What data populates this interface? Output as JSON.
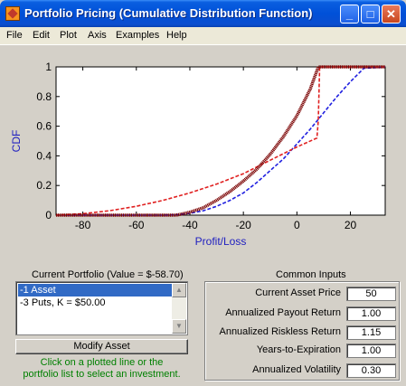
{
  "window": {
    "title": "Portfolio Pricing (Cumulative Distribution Function)",
    "minimize_glyph": "_",
    "maximize_glyph": "□",
    "close_glyph": "✕"
  },
  "menu": [
    "File",
    "Edit",
    "Plot",
    "Axis",
    "Examples",
    "Help"
  ],
  "chart_data": {
    "type": "line",
    "title": "",
    "xlabel": "Profit/Loss",
    "ylabel": "CDF",
    "xlim": [
      -90,
      33
    ],
    "ylim": [
      0,
      1
    ],
    "x_ticks": [
      -80,
      -60,
      -40,
      -20,
      0,
      20
    ],
    "y_ticks": [
      0,
      0.2,
      0.4,
      0.6,
      0.8,
      1
    ],
    "x_tick_labels": [
      "-80",
      "-60",
      "-40",
      "-20",
      "0",
      "20"
    ],
    "y_tick_labels": [
      "0",
      "0.2",
      "0.4",
      "0.6",
      "0.8",
      "1"
    ],
    "grid": false,
    "series": [
      {
        "style": "dashed",
        "color": "#2020e0",
        "x": [
          -90,
          -50,
          -45,
          -40,
          -35,
          -30,
          -25,
          -20,
          -15,
          -10,
          -5,
          0,
          5,
          10,
          15,
          20,
          25,
          33
        ],
        "y": [
          0,
          0,
          0.003,
          0.012,
          0.03,
          0.06,
          0.1,
          0.15,
          0.22,
          0.3,
          0.38,
          0.48,
          0.58,
          0.69,
          0.8,
          0.9,
          0.99,
          1
        ]
      },
      {
        "style": "dashed",
        "color": "#e02020",
        "x": [
          -90,
          -80,
          -70,
          -60,
          -50,
          -40,
          -30,
          -20,
          -10,
          0,
          7.5,
          8,
          8.5,
          33
        ],
        "y": [
          0,
          0.01,
          0.03,
          0.06,
          0.1,
          0.15,
          0.21,
          0.28,
          0.37,
          0.46,
          0.52,
          0.64,
          1,
          1
        ]
      },
      {
        "style": "thick-dotted",
        "color": "#7a0000",
        "x": [
          -90,
          -45,
          -40,
          -35,
          -30,
          -25,
          -20,
          -15,
          -10,
          -5,
          0,
          5,
          8,
          33
        ],
        "y": [
          0,
          0,
          0.02,
          0.05,
          0.1,
          0.16,
          0.23,
          0.31,
          0.41,
          0.53,
          0.67,
          0.85,
          1,
          1
        ]
      }
    ]
  },
  "portfolio": {
    "title": "Current Portfolio (Value = $-58.70)",
    "items": [
      "-1 Asset",
      "-3 Puts, K = $50.00"
    ],
    "selected_index": 0,
    "modify_button": "Modify Asset",
    "hint_line1": "Click on a plotted line or the",
    "hint_line2": "portfolio list to select an investment."
  },
  "common_inputs": {
    "title": "Common Inputs",
    "fields": [
      {
        "label": "Current Asset Price",
        "value": "50"
      },
      {
        "label": "Annualized Payout Return",
        "value": "1.00"
      },
      {
        "label": "Annualized Riskless Return",
        "value": "1.15"
      },
      {
        "label": "Years-to-Expiration",
        "value": "1.00"
      },
      {
        "label": "Annualized Volatility",
        "value": "0.30"
      }
    ]
  }
}
